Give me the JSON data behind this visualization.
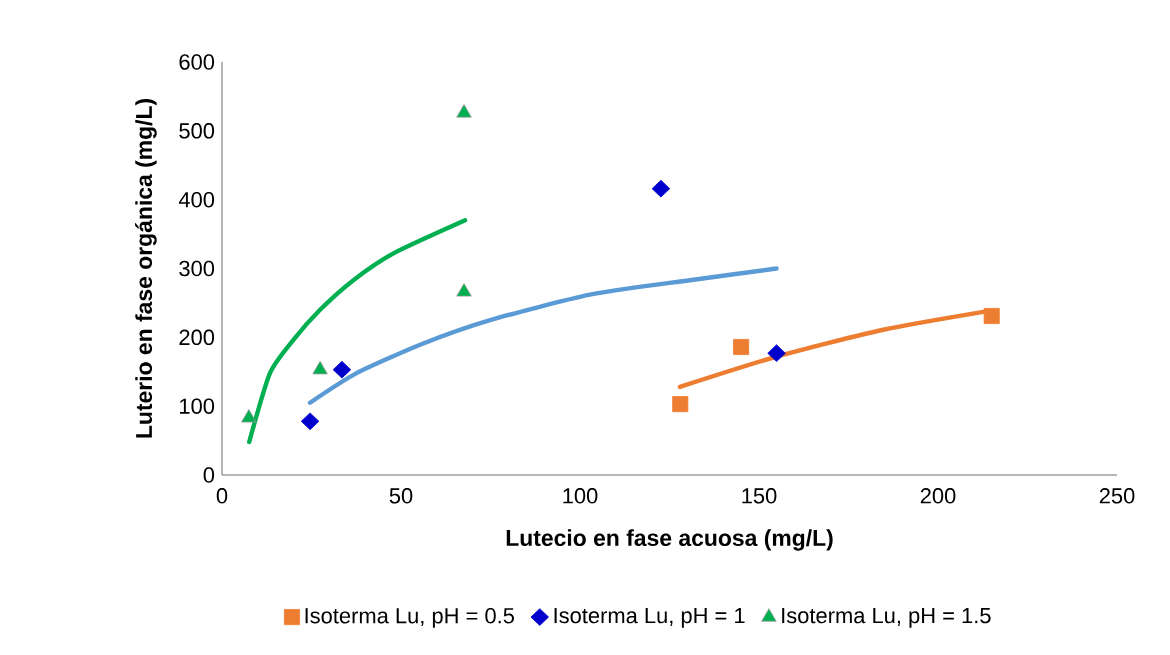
{
  "chart_data": {
    "type": "scatter",
    "xlabel": "Lutecio en fase acuosa (mg/L)",
    "ylabel": "Luterio en fase orgánica (mg/L)",
    "xlim": [
      0,
      250
    ],
    "xticks": [
      0,
      50,
      100,
      150,
      200,
      250
    ],
    "ylim": [
      0,
      600
    ],
    "yticks": [
      0,
      100,
      200,
      300,
      400,
      500,
      600
    ],
    "grid": false,
    "legend": "bottom",
    "series": [
      {
        "name": "Isoterma Lu, pH = 0.5",
        "color": "#ed7d31",
        "marker": "square",
        "x": [
          128,
          145,
          215
        ],
        "values": [
          103,
          186,
          231
        ]
      },
      {
        "name": "Isoterma Lu, pH = 1",
        "color": "#0000cc",
        "marker": "diamond",
        "x": [
          24.6,
          33.5,
          122.6,
          154.9
        ],
        "values": [
          78,
          153,
          416,
          177
        ]
      },
      {
        "name": "Isoterma Lu, pH = 1.5",
        "color": "#00b050",
        "marker": "triangle",
        "x": [
          7.5,
          27.4,
          67.6,
          67.6
        ],
        "values": [
          83,
          153,
          266,
          526
        ]
      },
      {
        "type": "line",
        "color": "#ed7d31",
        "marker": "none",
        "line_style": "solid",
        "x": [
          127.9,
          154.9,
          184.7,
          212.7
        ],
        "values": [
          128,
          172,
          211,
          237
        ]
      },
      {
        "type": "line",
        "color": "#5b9bd5",
        "marker": "none",
        "line_style": "solid",
        "x": [
          24.6,
          37.6,
          56.2,
          74.9,
          102.8,
          130.7,
          154.9
        ],
        "values": [
          105,
          148,
          191,
          225,
          262,
          283,
          300
        ]
      },
      {
        "type": "line",
        "color": "#00b050",
        "marker": "none",
        "line_style": "solid",
        "x": [
          7.6,
          13.4,
          19.9,
          27.4,
          36.7,
          47.9,
          67.9
        ],
        "values": [
          48,
          148,
          196,
          240,
          283,
          322,
          370
        ]
      }
    ]
  }
}
